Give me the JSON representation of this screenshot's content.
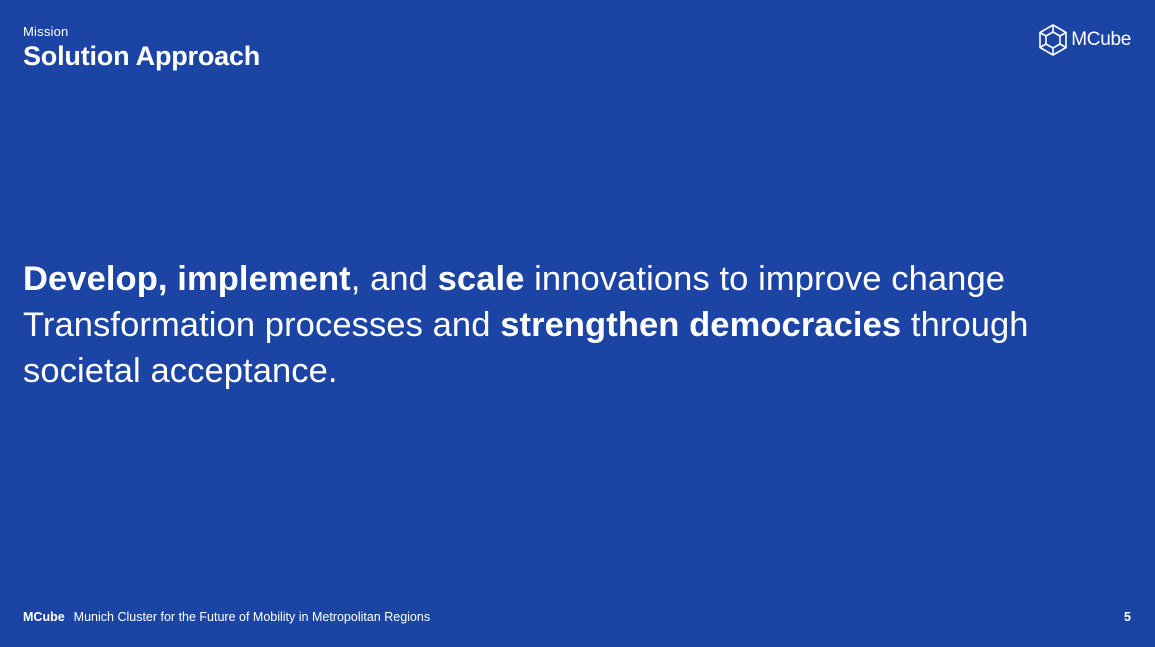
{
  "header": {
    "section_label": "Mission",
    "title": "Solution Approach"
  },
  "logo": {
    "icon": "cube-icon",
    "text": "MCube"
  },
  "statement": {
    "seg1_bold": "Develop, implement",
    "seg2": ", and ",
    "seg3_bold": "scale",
    "seg4": " innovations to improve change Transformation processes and ",
    "seg5_bold": "strengthen democracies",
    "seg6": " through societal acceptance."
  },
  "footer": {
    "brand": "MCube",
    "tagline": "Munich Cluster for the Future of Mobility in Metropolitan Regions",
    "page_number": "5"
  },
  "colors": {
    "background": "#1b44a4",
    "text": "#ffffff"
  }
}
